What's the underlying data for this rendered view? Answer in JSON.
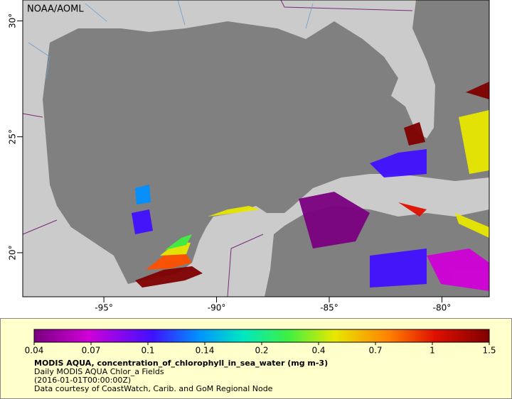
{
  "label": "NOAA/AOML",
  "map": {
    "xlim": [
      -98.6,
      -77.9
    ],
    "ylim": [
      18.1,
      30.9
    ],
    "xticks": [
      {
        "value": -95,
        "label": "-95°"
      },
      {
        "value": -90,
        "label": "-90°"
      },
      {
        "value": -85,
        "label": "-85°"
      },
      {
        "value": -80,
        "label": "-80°"
      }
    ],
    "yticks": [
      {
        "value": 30,
        "label": "30°"
      },
      {
        "value": 25,
        "label": "25°"
      },
      {
        "value": 20,
        "label": "20°"
      }
    ]
  },
  "colorbar": {
    "ticks": [
      0.04,
      0.07,
      0.1,
      0.14,
      0.2,
      0.4,
      0.7,
      1,
      1.5
    ],
    "title": "MODIS AQUA, concentration_of_chlorophyll_in_sea_water (mg m-3)",
    "lines": [
      "Daily MODIS AQUA Chlor_a Fields",
      "(2016-01-01T00:00:00Z)",
      "Data courtesy of CoastWatch, Carib. and GoM Regional Node"
    ]
  }
}
